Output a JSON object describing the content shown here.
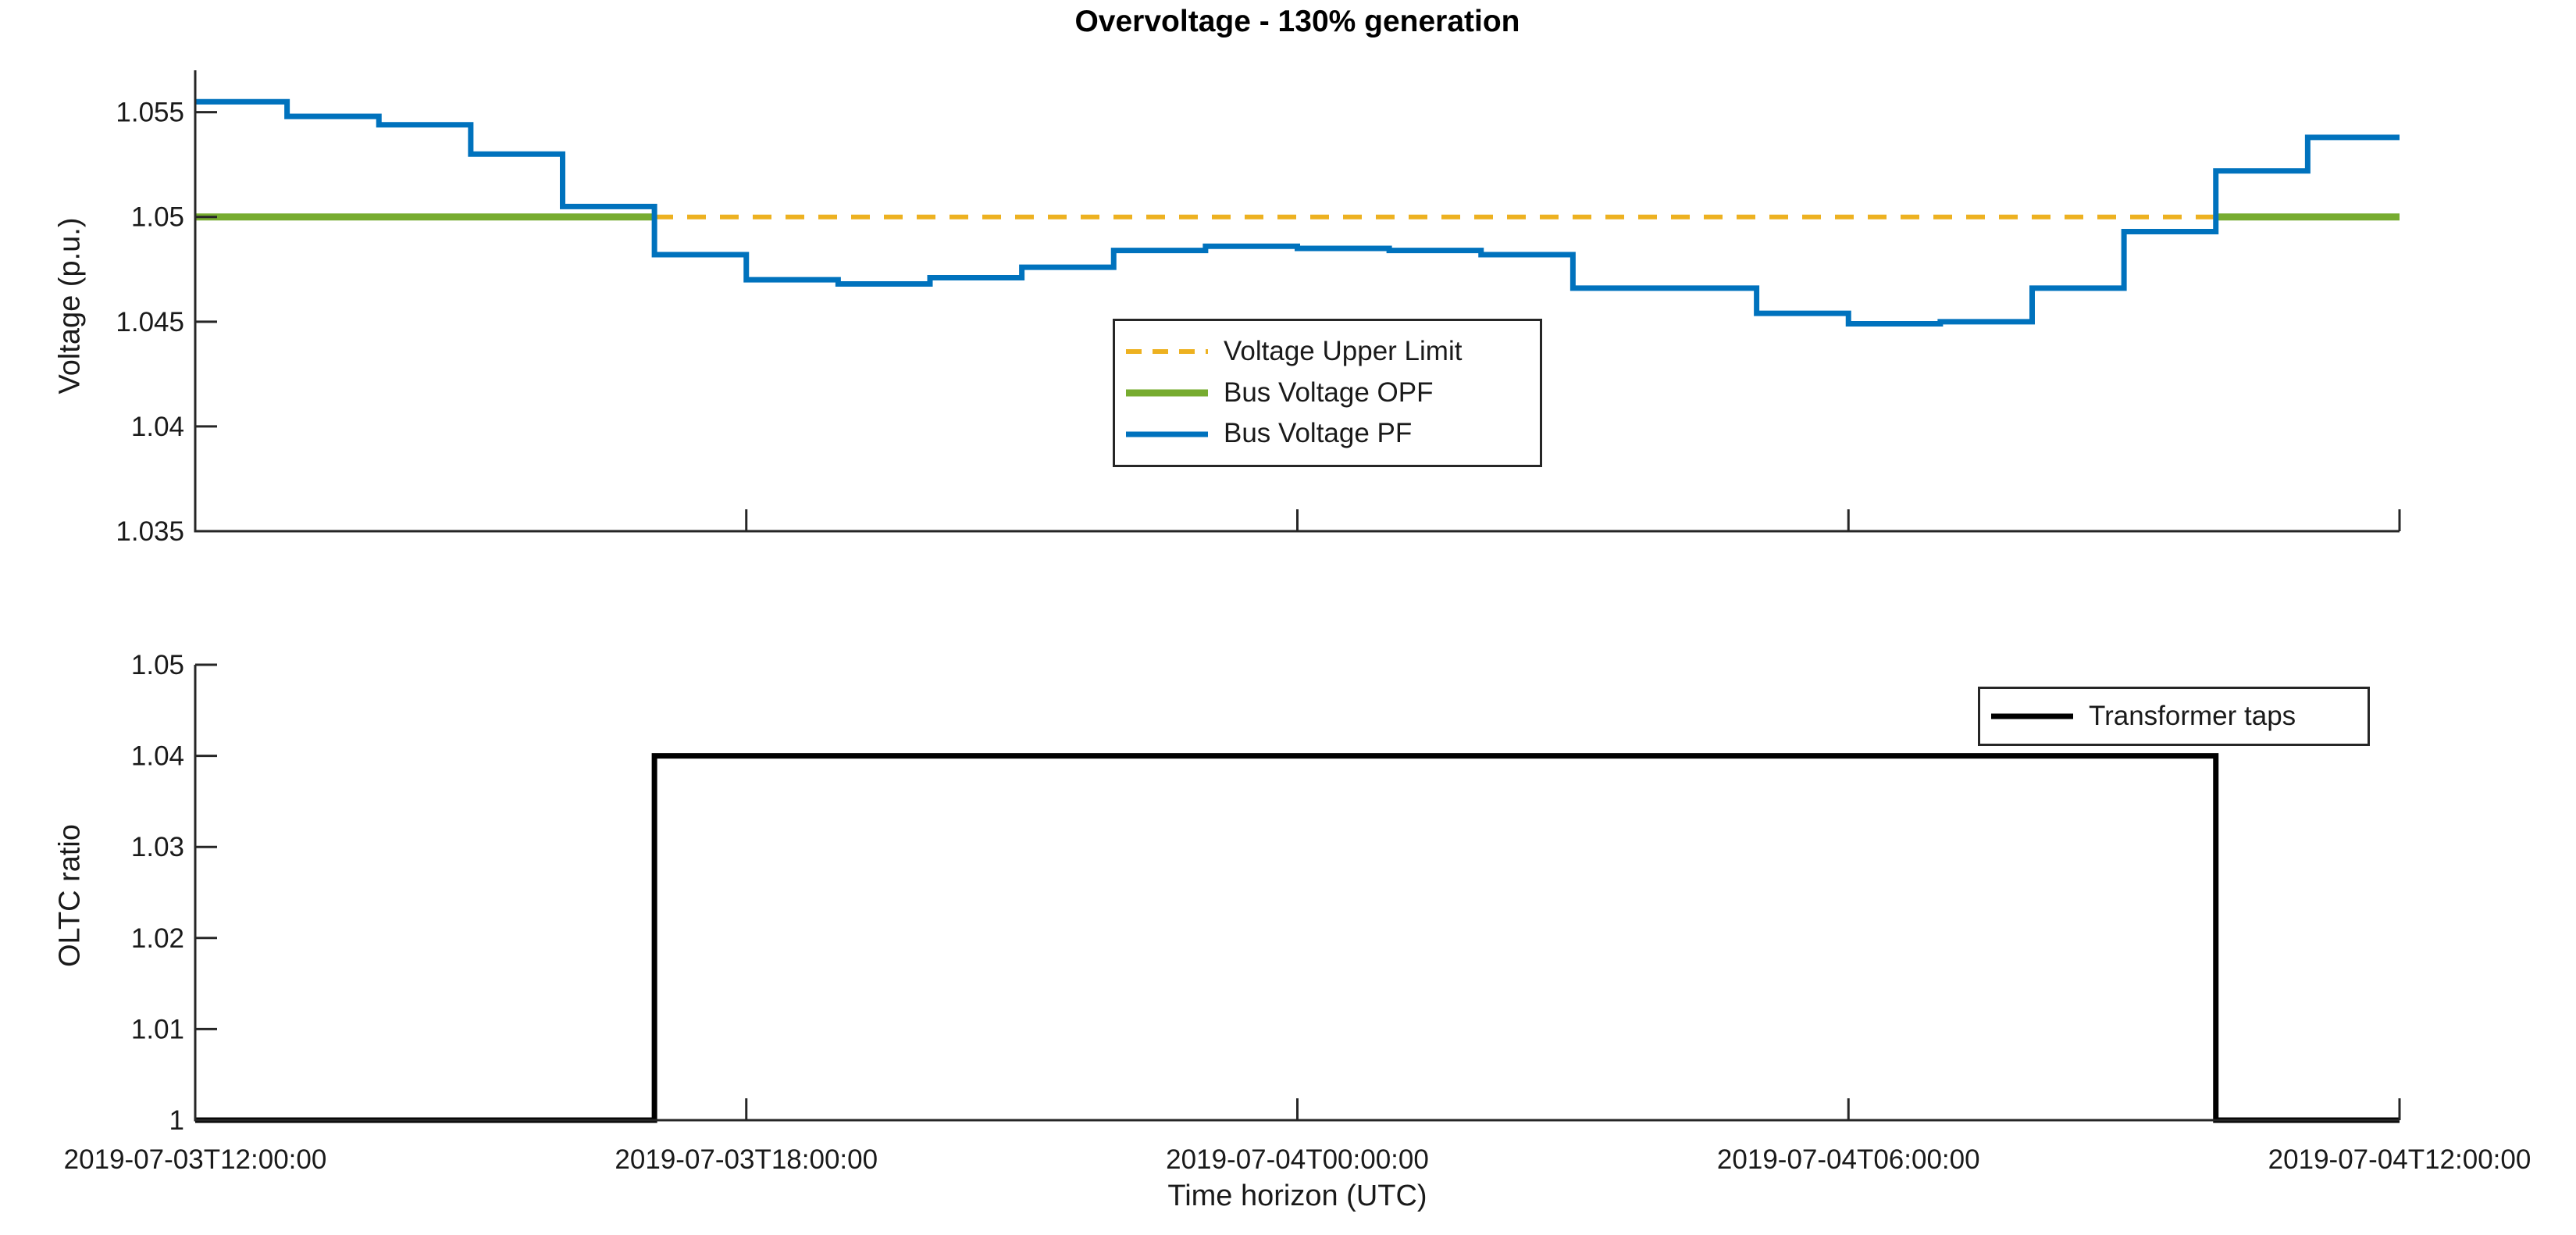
{
  "figure_title": "Overvoltage - 130% generation",
  "colors": {
    "pf_blue": "#0072BD",
    "opf_green": "#77AC30",
    "limit_orange": "#EDB120",
    "taps_black": "#000000",
    "axis": "#262626",
    "text": "#1a1a1a"
  },
  "time_axis": {
    "xlabel": "Time horizon (UTC)",
    "tick_hours": [
      0,
      6,
      12,
      18,
      24
    ],
    "tick_labels": [
      "2019-07-03T12:00:00",
      "2019-07-03T18:00:00",
      "2019-07-04T00:00:00",
      "2019-07-04T06:00:00",
      "2019-07-04T12:00:00"
    ]
  },
  "chart_data": [
    {
      "id": "voltage-chart",
      "type": "line",
      "title": "Overvoltage - 130% generation",
      "ylabel": "Voltage (p.u.)",
      "ylim": [
        1.035,
        1.057
      ],
      "ytick_values": [
        1.035,
        1.04,
        1.045,
        1.05,
        1.055
      ],
      "ytick_labels": [
        "1.035",
        "1.04",
        "1.045",
        "1.05",
        "1.055"
      ],
      "x_hours_range": [
        0,
        24
      ],
      "grid": false,
      "legend_position": "center",
      "legend": [
        "Voltage Upper Limit",
        "Bus Voltage OPF",
        "Bus Voltage PF"
      ],
      "series": [
        {
          "name": "Voltage Upper Limit",
          "kind": "hline",
          "style": "dashed",
          "color": "limit_orange",
          "value": 1.05,
          "span_hours": [
            [
              0,
              24
            ]
          ],
          "linewidth": 6
        },
        {
          "name": "Bus Voltage OPF",
          "kind": "hline",
          "style": "solid",
          "color": "opf_green",
          "value": 1.05,
          "span_hours": [
            [
              0,
              5
            ],
            [
              22,
              24
            ]
          ],
          "linewidth": 9
        },
        {
          "name": "Bus Voltage PF",
          "kind": "steps",
          "style": "solid",
          "color": "pf_blue",
          "start_hour": 0,
          "step_hours": 1,
          "linewidth": 7,
          "values": [
            1.0555,
            1.0548,
            1.0544,
            1.053,
            1.0505,
            1.0482,
            1.047,
            1.0468,
            1.0471,
            1.0476,
            1.0484,
            1.0486,
            1.0485,
            1.0484,
            1.0482,
            1.0466,
            1.0466,
            1.0454,
            1.0449,
            1.045,
            1.0466,
            1.0493,
            1.0522,
            1.0538
          ]
        }
      ]
    },
    {
      "id": "oltc-chart",
      "type": "line",
      "ylabel": "OLTC ratio",
      "xlabel": "Time horizon (UTC)",
      "ylim": [
        1,
        1.05
      ],
      "ytick_values": [
        1,
        1.01,
        1.02,
        1.03,
        1.04,
        1.05
      ],
      "ytick_labels": [
        "1",
        "1.01",
        "1.02",
        "1.03",
        "1.04",
        "1.05"
      ],
      "x_hours_range": [
        0,
        24
      ],
      "grid": false,
      "legend_position": "northeast",
      "legend": [
        "Transformer taps"
      ],
      "series": [
        {
          "name": "Transformer taps",
          "kind": "segments",
          "style": "solid",
          "color": "taps_black",
          "linewidth": 7,
          "segments": [
            {
              "from_hour": 0,
              "to_hour": 5,
              "value": 1
            },
            {
              "from_hour": 5,
              "to_hour": 22,
              "value": 1.04
            },
            {
              "from_hour": 22,
              "to_hour": 24,
              "value": 1
            }
          ]
        }
      ]
    }
  ]
}
